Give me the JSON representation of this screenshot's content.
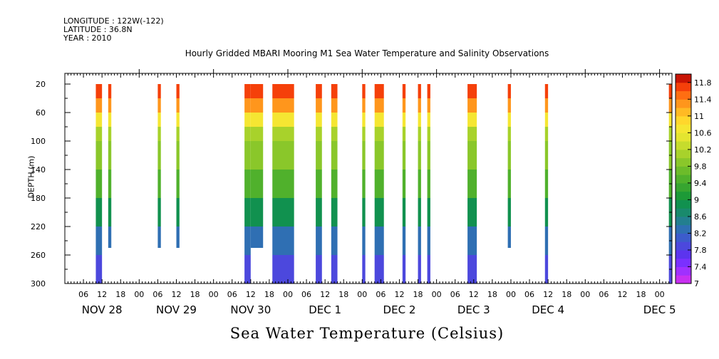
{
  "header": {
    "longitude": "LONGITUDE : 122W(-122)",
    "latitude": "LATITUDE : 36.8N",
    "year": "YEAR : 2010"
  },
  "chart_data": {
    "type": "heatmap",
    "title": "Hourly Gridded MBARI Mooring M1 Sea Water Temperature and Salinity Observations",
    "xlabel": "",
    "ylabel": "DEPTH (m)",
    "bottom_label": "Sea Water Temperature (Celsius)",
    "x_range_hours": [
      0,
      196
    ],
    "x_tick_hour_labels": [
      "06",
      "12",
      "18",
      "00",
      "06",
      "12",
      "18",
      "00",
      "06",
      "12",
      "18",
      "00",
      "06",
      "12",
      "18",
      "00",
      "06",
      "12",
      "18",
      "00",
      "06",
      "12",
      "18",
      "00",
      "06",
      "12",
      "18",
      "00",
      "06",
      "12",
      "18",
      "00"
    ],
    "x_tick_hours": [
      6,
      12,
      18,
      24,
      30,
      36,
      42,
      48,
      54,
      60,
      66,
      72,
      78,
      84,
      90,
      96,
      102,
      108,
      114,
      120,
      126,
      132,
      138,
      144,
      150,
      156,
      162,
      168,
      174,
      180,
      186,
      192
    ],
    "x_day_labels": [
      {
        "label": "NOV 28",
        "hour": 12
      },
      {
        "label": "NOV 29",
        "hour": 36
      },
      {
        "label": "NOV 30",
        "hour": 60
      },
      {
        "label": "DEC  1",
        "hour": 84
      },
      {
        "label": "DEC  2",
        "hour": 108
      },
      {
        "label": "DEC  3",
        "hour": 132
      },
      {
        "label": "DEC  4",
        "hour": 156
      },
      {
        "label": "DEC  5",
        "hour": 192
      }
    ],
    "y_range_depth": [
      300,
      5
    ],
    "y_ticks": [
      20,
      60,
      100,
      140,
      180,
      220,
      260,
      300
    ],
    "colorbar": {
      "levels": [
        7,
        7.2,
        7.4,
        7.6,
        7.8,
        8,
        8.2,
        8.4,
        8.6,
        8.8,
        9,
        9.2,
        9.4,
        9.6,
        9.8,
        10,
        10.2,
        10.4,
        10.6,
        10.8,
        11,
        11.2,
        11.4,
        11.6,
        11.8,
        12
      ],
      "labels": [
        "7",
        "7.4",
        "7.8",
        "8.2",
        "8.6",
        "9",
        "9.4",
        "9.8",
        "10.2",
        "10.6",
        "11",
        "11.4",
        "11.8"
      ],
      "colors": [
        "#c830f0",
        "#a030ff",
        "#7a30ff",
        "#5c34ee",
        "#4c48dd",
        "#3c5ccc",
        "#2f6fb3",
        "#237f8f",
        "#198a6c",
        "#11914f",
        "#1d9a37",
        "#37a530",
        "#50b12c",
        "#6cbc2a",
        "#8ac72a",
        "#a8d22b",
        "#c6dc2d",
        "#e4e530",
        "#f5e632",
        "#ffd72c",
        "#ffba24",
        "#ff961c",
        "#ff6e12",
        "#f5400a",
        "#c81404"
      ]
    },
    "columns": [
      {
        "start": 10,
        "end": 12,
        "bottom": 300
      },
      {
        "start": 14,
        "end": 15,
        "bottom": 250
      },
      {
        "start": 30,
        "end": 31,
        "bottom": 250
      },
      {
        "start": 36,
        "end": 37,
        "bottom": 250
      },
      {
        "start": 58,
        "end": 60,
        "bottom": 300
      },
      {
        "start": 60,
        "end": 64,
        "bottom": 250
      },
      {
        "start": 67,
        "end": 74,
        "bottom": 300
      },
      {
        "start": 81,
        "end": 83,
        "bottom": 300
      },
      {
        "start": 86,
        "end": 88,
        "bottom": 300
      },
      {
        "start": 96,
        "end": 97,
        "bottom": 300
      },
      {
        "start": 100,
        "end": 103,
        "bottom": 300
      },
      {
        "start": 109,
        "end": 110,
        "bottom": 300
      },
      {
        "start": 114,
        "end": 115,
        "bottom": 300
      },
      {
        "start": 117,
        "end": 118,
        "bottom": 300
      },
      {
        "start": 130,
        "end": 133,
        "bottom": 300
      },
      {
        "start": 143,
        "end": 144,
        "bottom": 250
      },
      {
        "start": 155,
        "end": 156,
        "bottom": 300
      },
      {
        "start": 195,
        "end": 196,
        "bottom": 300
      }
    ],
    "temperature_profile": [
      {
        "depth": 20,
        "temp": 11.7
      },
      {
        "depth": 40,
        "temp": 11.2
      },
      {
        "depth": 60,
        "temp": 10.6
      },
      {
        "depth": 80,
        "temp": 10.1
      },
      {
        "depth": 100,
        "temp": 9.8
      },
      {
        "depth": 140,
        "temp": 9.4
      },
      {
        "depth": 180,
        "temp": 8.9
      },
      {
        "depth": 220,
        "temp": 8.3
      },
      {
        "depth": 260,
        "temp": 7.8
      },
      {
        "depth": 300,
        "temp": 7.3
      }
    ]
  }
}
